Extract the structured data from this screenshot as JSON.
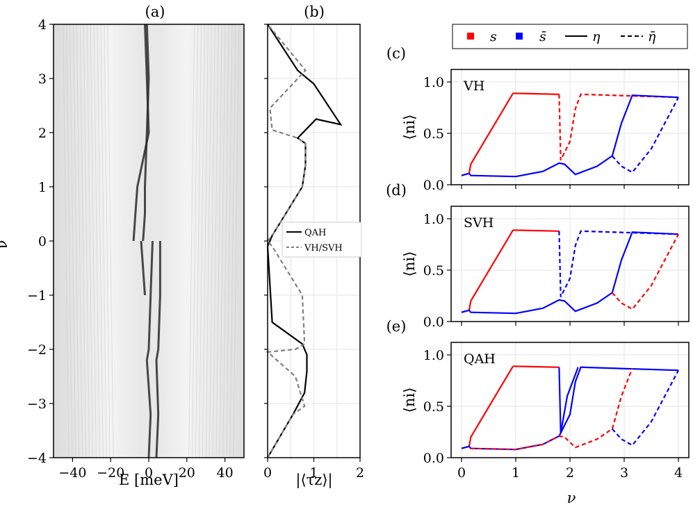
{
  "panels": {
    "a": {
      "label": "(a)",
      "xlabel": "E [meV]",
      "ylabel": "ν",
      "xlim": [
        -50,
        50
      ],
      "ylim": [
        -4,
        4
      ],
      "xticks": [
        -40,
        -20,
        0,
        20,
        40
      ],
      "xtick_labels": [
        "−40",
        "−20",
        "0",
        "20",
        "40"
      ],
      "yticks": [
        4,
        3,
        2,
        1,
        0,
        -1,
        -2,
        -3,
        -4
      ],
      "ytick_labels": [
        "4",
        "3",
        "2",
        "1",
        "0",
        "−1",
        "−2",
        "−3",
        "−4"
      ]
    },
    "b": {
      "label": "(b)",
      "xlabel": "|⟨τz⟩|",
      "xticks": [
        0,
        1,
        2
      ],
      "xtick_labels": [
        "0",
        "1",
        "2"
      ],
      "legend": [
        "QAH",
        "VH/SVH"
      ]
    },
    "c": {
      "label": "(c)",
      "name": "VH"
    },
    "d": {
      "label": "(d)",
      "name": "SVH"
    },
    "e": {
      "label": "(e)",
      "name": "QAH"
    },
    "right": {
      "xlabel": "ν",
      "ylabel": "⟨ni⟩",
      "xtick_labels": [
        "0",
        "1",
        "2",
        "3",
        "4"
      ],
      "ytick_labels": [
        "0.0",
        "0.5",
        "1.0"
      ]
    },
    "legend": {
      "s": "s",
      "s_bar": "s̄",
      "eta": "η",
      "eta_bar": "η̄"
    }
  },
  "colors": {
    "s": "#ff0000",
    "s_bar": "#0000ff",
    "qah": "#000000",
    "vh": "#808080"
  },
  "chart_data": [
    {
      "type": "heatmap",
      "title": "(a)",
      "xlabel": "E [meV]",
      "ylabel": "ν",
      "xlim": [
        -50,
        50
      ],
      "ylim": [
        -4,
        4
      ],
      "bands": [
        {
          "nu": [
            -4,
            -3.2,
            -2.2,
            -2,
            -1,
            0
          ],
          "E": [
            0,
            1,
            -1,
            0,
            1,
            2
          ]
        },
        {
          "nu": [
            -4,
            -3.2,
            -2.2,
            -2,
            -1,
            0
          ],
          "E": [
            4,
            5,
            4,
            5,
            6,
            6
          ]
        },
        {
          "nu": [
            -1,
            -0.5,
            0
          ],
          "E": [
            -2,
            -3,
            -4
          ]
        },
        {
          "nu": [
            0,
            0.5,
            1,
            2,
            3,
            4
          ],
          "E": [
            -3,
            -2,
            -2,
            -1,
            0,
            -1
          ]
        },
        {
          "nu": [
            0,
            0.5,
            1,
            2,
            3,
            4
          ],
          "E": [
            -8,
            -7,
            -6,
            0,
            -1,
            -2
          ]
        }
      ]
    },
    {
      "type": "line",
      "title": "(b)",
      "xlabel": "|⟨τz⟩|",
      "ylabel": "ν",
      "xlim": [
        0,
        2
      ],
      "ylim": [
        -4,
        4
      ],
      "series": [
        {
          "name": "QAH",
          "x": [
            0,
            0.55,
            0.8,
            0.85,
            0.85,
            0.75,
            0.1,
            0.0,
            0.1,
            0.75,
            0.82,
            0.82,
            0.65,
            1.05,
            1.58,
            1.0,
            0.65,
            0.0
          ],
          "nu": [
            -4,
            -3.2,
            -2.8,
            -2.4,
            -2.1,
            -1.9,
            -1.5,
            -0.1,
            0.1,
            1.0,
            1.4,
            1.8,
            1.9,
            2.25,
            2.15,
            2.9,
            3.15,
            4.0
          ]
        },
        {
          "name": "VH/SVH",
          "x": [
            0.0,
            0.55,
            0.8,
            0.6,
            0.0,
            0.6,
            0.8,
            0.75,
            0.1,
            0.0,
            0.1,
            0.75,
            0.82,
            0.82,
            0.65,
            0.1,
            0.05,
            0.6,
            0.82,
            0.0
          ],
          "nu": [
            -4,
            -3.2,
            -3.05,
            -2.5,
            -2.05,
            -2.0,
            -1.9,
            -1.0,
            -0.1,
            0,
            0.1,
            1.0,
            1.4,
            1.8,
            1.9,
            2.05,
            2.45,
            2.95,
            3.15,
            4.0
          ]
        }
      ]
    },
    {
      "type": "line",
      "title": "VH",
      "xlabel": "ν",
      "ylabel": "⟨ni⟩",
      "xlim": [
        0,
        4
      ],
      "ylim": [
        0,
        1
      ],
      "series": [
        {
          "name": "s",
          "x": [
            0,
            0.14,
            0.17,
            0.95,
            1.8,
            1.83,
            2.0,
            2.1,
            2.2,
            4.0
          ],
          "y": [
            0.09,
            0.11,
            0.2,
            0.89,
            0.88,
            0.24,
            0.42,
            0.74,
            0.88,
            0.85
          ]
        },
        {
          "name": "s̄",
          "x": [
            0,
            0.14,
            0.17,
            1.0,
            1.5,
            1.8,
            1.9,
            2.1,
            2.5,
            2.75,
            2.78,
            2.95,
            3.15,
            4.0
          ],
          "y": [
            0.09,
            0.11,
            0.09,
            0.08,
            0.13,
            0.21,
            0.2,
            0.1,
            0.18,
            0.27,
            0.28,
            0.6,
            0.87,
            0.85
          ]
        },
        {
          "name": "s̄ (dashed)",
          "x": [
            2.78,
            2.95,
            3.15,
            3.5,
            4.0
          ],
          "y": [
            0.28,
            0.18,
            0.12,
            0.35,
            0.85
          ]
        }
      ]
    },
    {
      "type": "line",
      "title": "SVH",
      "xlabel": "ν",
      "ylabel": "⟨ni⟩",
      "xlim": [
        0,
        4
      ],
      "ylim": [
        0,
        1
      ]
    },
    {
      "type": "line",
      "title": "QAH",
      "xlabel": "ν",
      "ylabel": "⟨ni⟩",
      "xlim": [
        0,
        4
      ],
      "ylim": [
        0,
        1
      ]
    }
  ]
}
